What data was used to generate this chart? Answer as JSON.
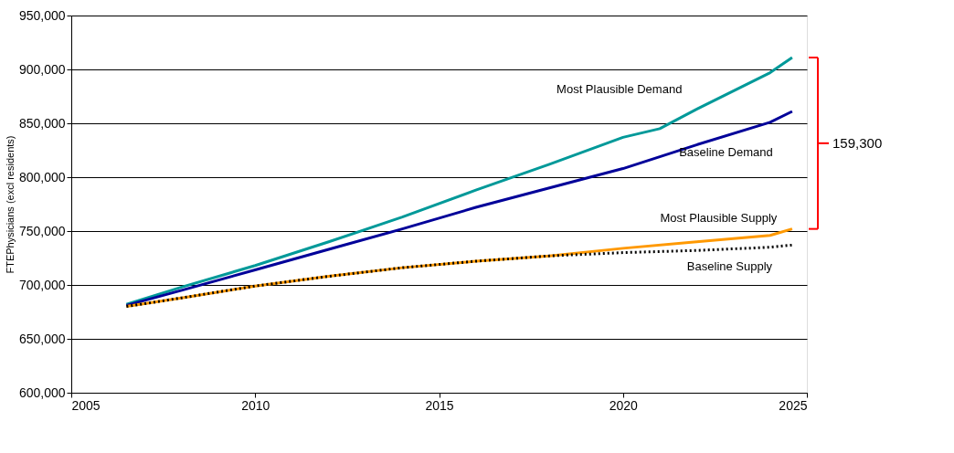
{
  "chart_data": {
    "type": "line",
    "ylabel": "FTEPhysicians (excl residents)",
    "xlim": [
      2005,
      2025
    ],
    "xticks": [
      2005,
      2010,
      2015,
      2020,
      2025
    ],
    "ylim": [
      600000,
      950000
    ],
    "yticks": [
      {
        "value": 600000,
        "label": "600,000"
      },
      {
        "value": 650000,
        "label": "650,000"
      },
      {
        "value": 700000,
        "label": "700,000"
      },
      {
        "value": 750000,
        "label": "750,000"
      },
      {
        "value": 800000,
        "label": "800,000"
      },
      {
        "value": 850000,
        "label": "850,000"
      },
      {
        "value": 900000,
        "label": "900,000"
      },
      {
        "value": 950000,
        "label": "950,000"
      }
    ],
    "grid": "y",
    "legend": false,
    "marker": "none",
    "annotations": [
      "159,300"
    ],
    "series": [
      {
        "name": "Most Plausible Demand",
        "color": "#009999",
        "line_style": "solid",
        "x": [
          2006.5,
          2008,
          2010,
          2012,
          2014,
          2016,
          2018,
          2020,
          2021,
          2022,
          2024,
          2024.6
        ],
        "values": [
          682000,
          698000,
          718000,
          740000,
          763000,
          788000,
          812000,
          837000,
          845000,
          863000,
          897000,
          911000
        ]
      },
      {
        "name": "Baseline Demand",
        "color": "#000099",
        "line_style": "solid",
        "x": [
          2006.5,
          2008,
          2010,
          2012,
          2014,
          2016,
          2018,
          2020,
          2022,
          2024,
          2024.6
        ],
        "values": [
          681000,
          695000,
          714000,
          733000,
          752000,
          772000,
          790000,
          808000,
          830000,
          851000,
          861000
        ]
      },
      {
        "name": "Most Plausible Supply",
        "color": "#ff9900",
        "line_style": "solid",
        "x": [
          2006.5,
          2008,
          2010,
          2012,
          2014,
          2016,
          2018,
          2020,
          2022,
          2024,
          2024.6
        ],
        "values": [
          680000,
          688000,
          699000,
          708000,
          716000,
          722000,
          727000,
          734000,
          740000,
          746000,
          752000
        ]
      },
      {
        "name": "Baseline Supply",
        "color": "#000000",
        "line_style": "dotted",
        "x": [
          2006.5,
          2008,
          2010,
          2012,
          2014,
          2016,
          2018,
          2020,
          2022,
          2024,
          2024.6
        ],
        "values": [
          680000,
          688000,
          699000,
          708000,
          716000,
          722000,
          727000,
          730000,
          732000,
          735000,
          737000
        ]
      }
    ]
  }
}
